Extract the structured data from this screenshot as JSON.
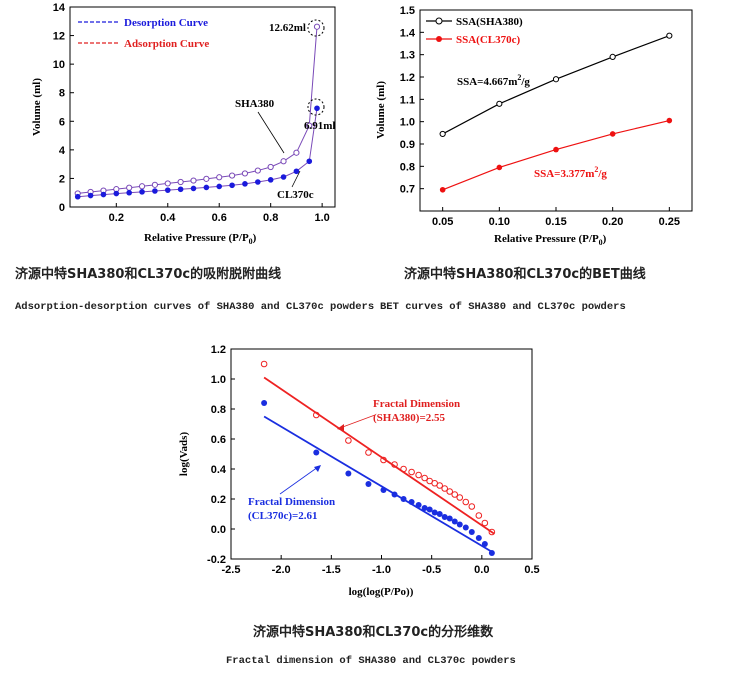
{
  "captions": {
    "c1_cn": "济源中特SHA380和CL370c的吸附脱附曲线",
    "c1_en": "Adsorption-desorption curves of SHA380 and CL370c powders",
    "c2_cn": "济源中特SHA380和CL370c的BET曲线",
    "c2_en": "BET curves of SHA380 and CL370c powders",
    "c3_cn": "济源中特SHA380和CL370c的分形维数",
    "c3_en": "Fractal dimension of SHA380 and CL370c powders"
  },
  "chart_data": [
    {
      "type": "line",
      "title": "",
      "xlabel": "Relative Pressure (P/P",
      "xlabel_sub": "0",
      "xlabel_end": ")",
      "ylabel": "Volume (ml)",
      "xlim": [
        0.02,
        1.05
      ],
      "ylim": [
        0,
        14
      ],
      "xticks": [
        "0.2",
        "0.4",
        "0.6",
        "0.8",
        "1.0"
      ],
      "xtick_vals": [
        0.2,
        0.4,
        0.6,
        0.8,
        1.0
      ],
      "yticks": [
        "0",
        "2",
        "4",
        "6",
        "8",
        "10",
        "12",
        "14"
      ],
      "ytick_vals": [
        0,
        2,
        4,
        6,
        8,
        10,
        12,
        14
      ],
      "legend": [
        "Desorption Curve",
        "Adsorption Curve"
      ],
      "colors": {
        "desorption": "#1a1adc",
        "adsorption": "#e02020",
        "line": "#7a4ab8"
      },
      "annotations": {
        "sha_peak": "12.62ml",
        "cl_peak": "6.91ml",
        "sha_label": "SHA380",
        "cl_label": "CL370c"
      },
      "series": [
        {
          "name": "SHA380",
          "marker": "open",
          "x": [
            0.05,
            0.1,
            0.15,
            0.2,
            0.25,
            0.3,
            0.35,
            0.4,
            0.45,
            0.5,
            0.55,
            0.6,
            0.65,
            0.7,
            0.75,
            0.8,
            0.85,
            0.9,
            0.95,
            0.98
          ],
          "y": [
            0.95,
            1.05,
            1.15,
            1.25,
            1.35,
            1.45,
            1.55,
            1.65,
            1.75,
            1.85,
            1.97,
            2.08,
            2.2,
            2.35,
            2.55,
            2.8,
            3.2,
            3.8,
            5.7,
            12.62
          ]
        },
        {
          "name": "CL370c",
          "marker": "filled",
          "x": [
            0.05,
            0.1,
            0.15,
            0.2,
            0.25,
            0.3,
            0.35,
            0.4,
            0.45,
            0.5,
            0.55,
            0.6,
            0.65,
            0.7,
            0.75,
            0.8,
            0.85,
            0.9,
            0.95,
            0.98
          ],
          "y": [
            0.72,
            0.8,
            0.87,
            0.94,
            1.0,
            1.06,
            1.12,
            1.18,
            1.24,
            1.3,
            1.37,
            1.44,
            1.52,
            1.62,
            1.75,
            1.9,
            2.1,
            2.5,
            3.2,
            6.91
          ]
        }
      ]
    },
    {
      "type": "line",
      "title": "",
      "xlabel": "Relative Pressure (P/P",
      "xlabel_sub": "0",
      "xlabel_end": ")",
      "ylabel": "Volume (ml)",
      "xlim": [
        0.03,
        0.27
      ],
      "ylim": [
        0.6,
        1.5
      ],
      "xticks": [
        "0.05",
        "0.10",
        "0.15",
        "0.20",
        "0.25"
      ],
      "xtick_vals": [
        0.05,
        0.1,
        0.15,
        0.2,
        0.25
      ],
      "yticks": [
        "0.7",
        "0.8",
        "0.9",
        "1.0",
        "1.1",
        "1.2",
        "1.3",
        "1.4",
        "1.5"
      ],
      "ytick_vals": [
        0.7,
        0.8,
        0.9,
        1.0,
        1.1,
        1.2,
        1.3,
        1.4,
        1.5
      ],
      "legend": [
        "SSA(SHA380)",
        "SSA(CL370c)"
      ],
      "annotations": {
        "sha_ssa": "SSA=4.667m",
        "cl_ssa": "SSA=3.377m",
        "unit_sup": "2",
        "unit_end": "/g"
      },
      "series": [
        {
          "name": "SSA(SHA380)",
          "color": "#000000",
          "marker": "open",
          "x": [
            0.05,
            0.1,
            0.15,
            0.2,
            0.25
          ],
          "y": [
            0.945,
            1.08,
            1.19,
            1.29,
            1.385
          ]
        },
        {
          "name": "SSA(CL370c)",
          "color": "#ee1111",
          "marker": "filled",
          "x": [
            0.05,
            0.1,
            0.15,
            0.2,
            0.25
          ],
          "y": [
            0.695,
            0.795,
            0.875,
            0.945,
            1.005
          ]
        }
      ]
    },
    {
      "type": "scatter",
      "title": "",
      "xlabel": "log(log(P/Po))",
      "ylabel": "log(Vads)",
      "xlim": [
        -2.5,
        0.5
      ],
      "ylim": [
        -0.2,
        1.2
      ],
      "xticks": [
        "-2.5",
        "-2.0",
        "-1.5",
        "-1.0",
        "-0.5",
        "0.0",
        "0.5"
      ],
      "xtick_vals": [
        -2.5,
        -2.0,
        -1.5,
        -1.0,
        -0.5,
        0.0,
        0.5
      ],
      "yticks": [
        "-0.2",
        "0.0",
        "0.2",
        "0.4",
        "0.6",
        "0.8",
        "1.0",
        "1.2"
      ],
      "ytick_vals": [
        -0.2,
        0.0,
        0.2,
        0.4,
        0.6,
        0.8,
        1.0,
        1.2
      ],
      "annotations": {
        "sha_fd_1": "Fractal Dimension",
        "sha_fd_2": "(SHA380)=2.55",
        "cl_fd_1": "Fractal Dimension",
        "cl_fd_2": "(CL370c)=2.61"
      },
      "series": [
        {
          "name": "SHA380",
          "color": "#ee2222",
          "marker": "open",
          "x": [
            -2.17,
            -1.65,
            -1.33,
            -1.13,
            -0.98,
            -0.87,
            -0.78,
            -0.7,
            -0.63,
            -0.57,
            -0.52,
            -0.47,
            -0.42,
            -0.37,
            -0.32,
            -0.27,
            -0.22,
            -0.16,
            -0.1,
            -0.03,
            0.03,
            0.1
          ],
          "y": [
            1.1,
            0.76,
            0.59,
            0.51,
            0.46,
            0.43,
            0.4,
            0.38,
            0.36,
            0.34,
            0.32,
            0.305,
            0.29,
            0.27,
            0.25,
            0.23,
            0.21,
            0.18,
            0.15,
            0.09,
            0.04,
            -0.02
          ],
          "fit": {
            "x": [
              -2.17,
              0.12
            ],
            "y": [
              1.01,
              -0.03
            ]
          }
        },
        {
          "name": "CL370c",
          "color": "#1a2ee0",
          "marker": "filled",
          "x": [
            -2.17,
            -1.65,
            -1.33,
            -1.13,
            -0.98,
            -0.87,
            -0.78,
            -0.7,
            -0.63,
            -0.57,
            -0.52,
            -0.47,
            -0.42,
            -0.37,
            -0.32,
            -0.27,
            -0.22,
            -0.16,
            -0.1,
            -0.03,
            0.03,
            0.1
          ],
          "y": [
            0.84,
            0.51,
            0.37,
            0.3,
            0.26,
            0.23,
            0.2,
            0.18,
            0.16,
            0.14,
            0.13,
            0.11,
            0.1,
            0.08,
            0.07,
            0.05,
            0.03,
            0.01,
            -0.02,
            -0.06,
            -0.1,
            -0.16
          ],
          "fit": {
            "x": [
              -2.17,
              0.12
            ],
            "y": [
              0.75,
              -0.16
            ]
          }
        }
      ]
    }
  ]
}
